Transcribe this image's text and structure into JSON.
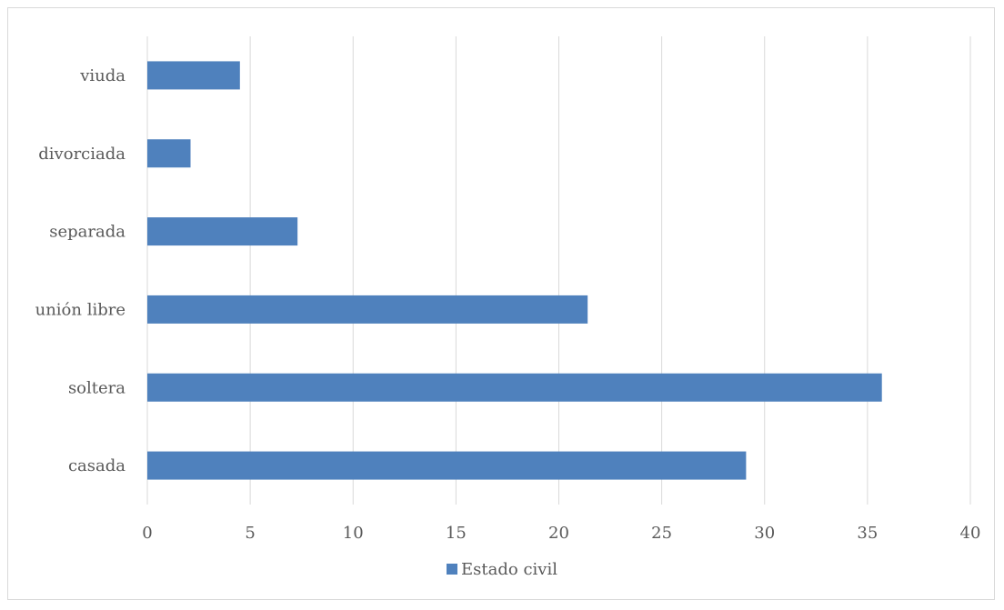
{
  "chart_data": {
    "type": "bar",
    "orientation": "horizontal",
    "categories": [
      "casada",
      "soltera",
      "unión libre",
      "separada",
      "divorciada",
      "viuda"
    ],
    "series": [
      {
        "name": "Estado civil",
        "values": [
          29.1,
          35.7,
          21.4,
          7.3,
          2.1,
          4.5
        ],
        "color": "#4f81bd"
      }
    ],
    "xlim": [
      0,
      40
    ],
    "xticks": [
      0,
      5,
      10,
      15,
      20,
      25,
      30,
      35,
      40
    ],
    "grid": "vertical",
    "legend_position": "bottom"
  }
}
